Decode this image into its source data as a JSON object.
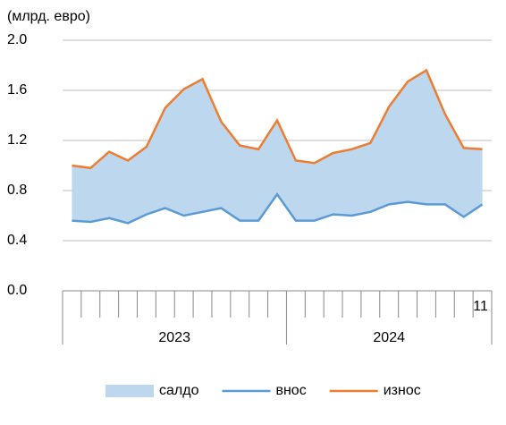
{
  "chart_data": {
    "type": "line",
    "y_label": "(млрд. евро)",
    "categories": [
      null,
      null,
      null,
      null,
      null,
      null,
      null,
      null,
      null,
      null,
      null,
      null,
      null,
      null,
      null,
      null,
      null,
      null,
      null,
      null,
      null,
      null,
      "11"
    ],
    "x_groups": [
      {
        "label": "2023",
        "count": 12
      },
      {
        "label": "2024",
        "count": 11
      }
    ],
    "series": [
      {
        "name": "салдо",
        "color": "#bdd7ee",
        "kind": "area_between"
      },
      {
        "name": "внос",
        "color": "#5b9bd5",
        "values": [
          0.56,
          0.55,
          0.58,
          0.54,
          0.61,
          0.66,
          0.6,
          0.63,
          0.66,
          0.56,
          0.56,
          0.77,
          0.56,
          0.56,
          0.61,
          0.6,
          0.63,
          0.69,
          0.71,
          0.69,
          0.69,
          0.59,
          0.69
        ]
      },
      {
        "name": "износ",
        "color": "#ed7d31",
        "values": [
          1.0,
          0.98,
          1.11,
          1.04,
          1.15,
          1.46,
          1.61,
          1.69,
          1.35,
          1.16,
          1.13,
          1.36,
          1.04,
          1.02,
          1.1,
          1.13,
          1.18,
          1.47,
          1.67,
          1.76,
          1.41,
          1.14,
          1.13
        ]
      }
    ],
    "ylim": [
      0,
      2.0
    ],
    "yticks": [
      {
        "value": 0,
        "label": "0.0"
      },
      0.4,
      0.8,
      1.2,
      1.6,
      {
        "value": 2,
        "label": "2.0"
      }
    ],
    "grid": true
  }
}
